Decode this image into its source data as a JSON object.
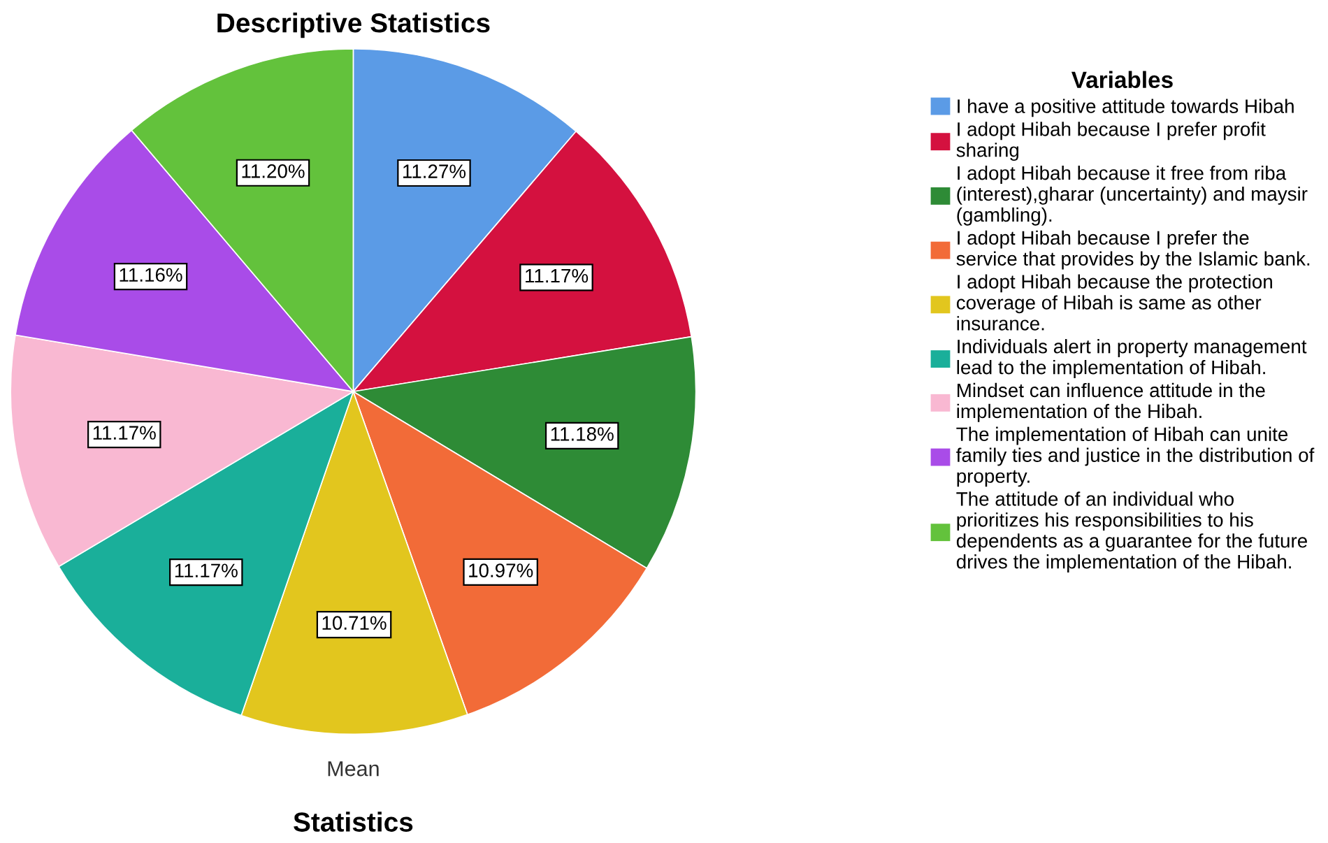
{
  "chart_data": {
    "type": "pie",
    "title": "Descriptive Statistics",
    "xlabel": "Mean",
    "annotations": [
      "Statistics"
    ],
    "legend_title": "Variables",
    "legend": "right",
    "categories": [
      "I have a positive attitude towards Hibah",
      "I adopt Hibah because I prefer profit\nsharing",
      "I adopt Hibah because it free from riba\n(interest),gharar (uncertainty) and maysir\n(gambling).",
      "I adopt Hibah because I prefer the\nservice that provides by the Islamic bank.",
      "I adopt Hibah because the protection\ncoverage of Hibah is same as other\ninsurance.",
      "Individuals alert in property management\nlead to the implementation of Hibah.",
      "Mindset can influence attitude in the\nimplementation of the Hibah.",
      "The implementation of Hibah can unite\nfamily ties and justice in the distribution of\nproperty.",
      "The attitude of an individual who\nprioritizes his responsibilities to his\ndependents as a guarantee for the future\ndrives the implementation of the Hibah."
    ],
    "values": [
      11.27,
      11.17,
      11.18,
      10.97,
      10.71,
      11.17,
      11.17,
      11.16,
      11.2
    ],
    "value_labels": [
      "11.27%",
      "11.17%",
      "11.18%",
      "10.97%",
      "10.71%",
      "11.17%",
      "11.17%",
      "11.16%",
      "11.20%"
    ],
    "colors": [
      "#5b9be6",
      "#d4113f",
      "#2e8b36",
      "#f26b38",
      "#e2c61e",
      "#1aaf9a",
      "#f9b8d2",
      "#a94ce8",
      "#63c23c"
    ]
  }
}
